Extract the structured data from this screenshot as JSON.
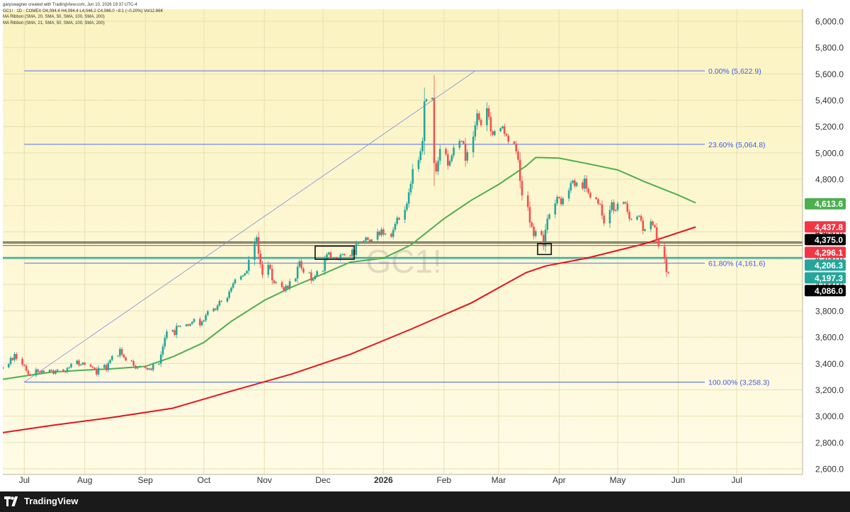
{
  "header": {
    "line1": "garyswagner created with TradingView.com, Jun 10, 2026 19:37 UTC-4",
    "line2": "GC1! · 1D · COMEX  O4,094.4  H4,094.4  L4,046.2  C4,086.0  −8.1 (−0.20%)  Vol12.86K",
    "line3": "MA Ribbon (SMA, 20, SMA, 50, SMA, 100, SMA, 200)",
    "line4": "MA Ribbon (SMA, 21, SMA, 50, SMA, 100, SMA, 200)"
  },
  "watermark": "GC1!",
  "footer": {
    "brand": "TradingView"
  },
  "colors": {
    "bg_top": "#fbf3c0",
    "bg_bottom": "#fffbe6",
    "up": "#26a69a",
    "down": "#ef5350",
    "ma50": "#4caf50",
    "ma200": "#e8121e",
    "fib": "#3d5ce8",
    "hline_red": "#e8121e",
    "hline_green": "#26a69a",
    "hline_black": "#222222"
  },
  "chart_data": {
    "type": "candlestick",
    "symbol": "GC1!",
    "interval": "1D",
    "exchange": "COMEX",
    "ylim": [
      2600,
      6000
    ],
    "y_ticks": [
      2600,
      2800,
      3000,
      3200,
      3400,
      3600,
      3800,
      4000,
      4200,
      4400,
      4600,
      4800,
      5000,
      5200,
      5400,
      5600,
      5800,
      6000
    ],
    "y_tick_labels": [
      "2,600.0",
      "2,800.0",
      "3,000.0",
      "3,200.0",
      "3,400.0",
      "3,600.0",
      "3,800.0",
      "4,000.0",
      "4,200.0",
      "4,400.0",
      "4,600.0",
      "4,800.0",
      "5,000.0",
      "5,200.0",
      "5,400.0",
      "5,600.0",
      "5,800.0",
      "6,000.0"
    ],
    "x_range": [
      "2025-06-20",
      "2026-07-30"
    ],
    "x_ticks": [
      {
        "date": "2025-07-01",
        "label": "Jul",
        "bold": false
      },
      {
        "date": "2025-08-01",
        "label": "Aug",
        "bold": false
      },
      {
        "date": "2025-09-01",
        "label": "Sep",
        "bold": false
      },
      {
        "date": "2025-10-01",
        "label": "Oct",
        "bold": false
      },
      {
        "date": "2025-11-01",
        "label": "Nov",
        "bold": false
      },
      {
        "date": "2025-12-01",
        "label": "Dec",
        "bold": false
      },
      {
        "date": "2026-01-01",
        "label": "2026",
        "bold": true
      },
      {
        "date": "2026-02-01",
        "label": "Feb",
        "bold": false
      },
      {
        "date": "2026-03-01",
        "label": "Mar",
        "bold": false
      },
      {
        "date": "2026-04-01",
        "label": "Apr",
        "bold": false
      },
      {
        "date": "2026-05-01",
        "label": "May",
        "bold": false
      },
      {
        "date": "2026-06-01",
        "label": "Jun",
        "bold": false
      },
      {
        "date": "2026-07-01",
        "label": "Jul",
        "bold": false
      }
    ],
    "fibonacci": {
      "start": "2025-07-01",
      "end": "2026-06-10",
      "levels": [
        {
          "label": "0.00% (5,622.9)",
          "value": 5622.9
        },
        {
          "label": "23.60% (5,064.8)",
          "value": 5064.8
        },
        {
          "label": "61.80% (4,161.6)",
          "value": 4161.6
        },
        {
          "label": "100.00% (3,258.3)",
          "value": 3258.3
        }
      ]
    },
    "trendline": {
      "from": [
        "2025-07-01",
        3258.3
      ],
      "to": [
        "2026-02-17",
        5622.9
      ]
    },
    "horizontal_lines": [
      {
        "value": 4296.1,
        "color": "red"
      },
      {
        "value": 4206.3,
        "color": "green"
      },
      {
        "value": 4197.3,
        "color": "green"
      },
      {
        "value": 4323.0,
        "color": "black"
      },
      {
        "value": 4315.0,
        "color": "black"
      }
    ],
    "boxes": [
      {
        "from": "2025-11-27",
        "to": "2025-12-17",
        "low": 4192,
        "high": 4292
      },
      {
        "from": "2026-03-21",
        "to": "2026-03-28",
        "low": 4228,
        "high": 4310
      }
    ],
    "price_labels": [
      {
        "value": 4613.6,
        "text": "4,613.6",
        "bg": "#4caf50",
        "fg": "#ffffff"
      },
      {
        "value": 4437.8,
        "text": "4,437.8",
        "bg": "#f23645",
        "fg": "#ffffff"
      },
      {
        "value": 4375.0,
        "text": "4,375.0",
        "bg": "#000000",
        "fg": "#ffffff"
      },
      {
        "value": 4296.1,
        "text": "4,296.1",
        "bg": "#f23645",
        "fg": "#ffffff"
      },
      {
        "value": 4206.3,
        "text": "4,206.3",
        "bg": "#26a69a",
        "fg": "#ffffff"
      },
      {
        "value": 4197.3,
        "text": "4,197.3",
        "bg": "#26a69a",
        "fg": "#ffffff"
      },
      {
        "value": 4086.0,
        "text": "4,086.0",
        "bg": "#000000",
        "fg": "#ffffff"
      }
    ],
    "series": [
      {
        "name": "GC1! price (daily closes)",
        "kind": "candles",
        "start": "2025-06-20",
        "close": [
          3371,
          3396,
          3442,
          3426,
          3472,
          3435,
          3390,
          3383,
          3346,
          3318,
          3310,
          3355,
          3338,
          3330,
          3345,
          3334,
          3352,
          3347,
          3322,
          3345,
          3354,
          3338,
          3335,
          3365,
          3371,
          3397,
          3422,
          3387,
          3392,
          3406,
          3392,
          3377,
          3369,
          3358,
          3317,
          3368,
          3389,
          3349,
          3403,
          3426,
          3456,
          3458,
          3510,
          3468,
          3446,
          3423,
          3418,
          3383,
          3362,
          3373,
          3380,
          3366,
          3354,
          3362,
          3351,
          3393,
          3398,
          3468,
          3529,
          3594,
          3643,
          3653,
          3617,
          3686,
          3681,
          3685,
          3697,
          3687,
          3700,
          3716,
          3738,
          3690,
          3719,
          3727,
          3768,
          3797,
          3817,
          3808,
          3841,
          3875,
          3870,
          3899,
          3946,
          3975,
          4009,
          4038,
          4062,
          4069,
          4084,
          4103,
          4188,
          4309,
          4359,
          4234,
          4153,
          4074,
          4149,
          4119,
          4031,
          4011,
          4018,
          3980,
          3952,
          3990,
          3971,
          4025,
          4045,
          4136,
          4177,
          4123,
          4092,
          4092,
          4029,
          4042,
          4067,
          4101,
          4103,
          4190,
          4229,
          4243,
          4206,
          4194,
          4189,
          4226,
          4231,
          4222,
          4216,
          4265,
          4225,
          4307,
          4318,
          4332,
          4357,
          4340,
          4327,
          4341,
          4402,
          4375,
          4419,
          4380,
          4386,
          4363,
          4417,
          4461,
          4507,
          4493,
          4568,
          4614,
          4700,
          4765,
          4877,
          4945,
          5012,
          5090,
          5391,
          5407,
          5417,
          4922,
          4859,
          4940,
          5030,
          4990,
          4904,
          4938,
          4980,
          5040,
          5090,
          5089,
          5070,
          4941,
          5005,
          5123,
          5209,
          5300,
          5252,
          5210,
          5339,
          5273,
          5164,
          5136,
          5165,
          5187,
          5201,
          5144,
          5131,
          5086,
          5071,
          5010,
          4948,
          4787,
          4677,
          4589,
          4471,
          4440,
          4368,
          4406,
          4377,
          4290,
          4416,
          4500,
          4532,
          4616,
          4665,
          4656,
          4610,
          4653,
          4715,
          4771,
          4790,
          4748,
          4774,
          4729,
          4805,
          4728,
          4696,
          4661,
          4648,
          4614,
          4609,
          4524,
          4465,
          4566,
          4625,
          4560,
          4567,
          4614,
          4626,
          4615,
          4552,
          4498,
          4493,
          4517,
          4522,
          4486,
          4408,
          4420,
          4479,
          4452,
          4435,
          4344,
          4290,
          4195,
          4094,
          4086
        ]
      },
      {
        "name": "SMA 50",
        "kind": "line",
        "points": [
          [
            "2025-06-20",
            3280
          ],
          [
            "2025-07-01",
            3305
          ],
          [
            "2025-07-15",
            3335
          ],
          [
            "2025-08-01",
            3350
          ],
          [
            "2025-08-15",
            3360
          ],
          [
            "2025-09-01",
            3378
          ],
          [
            "2025-09-15",
            3450
          ],
          [
            "2025-10-01",
            3560
          ],
          [
            "2025-10-15",
            3720
          ],
          [
            "2025-11-01",
            3880
          ],
          [
            "2025-11-15",
            3980
          ],
          [
            "2025-12-01",
            4080
          ],
          [
            "2025-12-15",
            4170
          ],
          [
            "2026-01-01",
            4200
          ],
          [
            "2026-01-15",
            4300
          ],
          [
            "2026-02-01",
            4500
          ],
          [
            "2026-02-15",
            4640
          ],
          [
            "2026-03-01",
            4760
          ],
          [
            "2026-03-15",
            4900
          ],
          [
            "2026-03-20",
            4965
          ],
          [
            "2026-04-01",
            4960
          ],
          [
            "2026-04-15",
            4920
          ],
          [
            "2026-05-01",
            4870
          ],
          [
            "2026-05-15",
            4780
          ],
          [
            "2026-06-01",
            4680
          ],
          [
            "2026-06-10",
            4620
          ]
        ]
      },
      {
        "name": "SMA 200",
        "kind": "line",
        "points": [
          [
            "2025-06-20",
            2875
          ],
          [
            "2025-07-15",
            2930
          ],
          [
            "2025-08-15",
            2990
          ],
          [
            "2025-09-15",
            3060
          ],
          [
            "2025-10-15",
            3190
          ],
          [
            "2025-11-15",
            3320
          ],
          [
            "2025-12-15",
            3470
          ],
          [
            "2026-01-15",
            3660
          ],
          [
            "2026-02-15",
            3860
          ],
          [
            "2026-03-15",
            4090
          ],
          [
            "2026-03-25",
            4140
          ],
          [
            "2026-04-15",
            4200
          ],
          [
            "2026-05-15",
            4310
          ],
          [
            "2026-06-10",
            4437
          ]
        ]
      }
    ]
  }
}
